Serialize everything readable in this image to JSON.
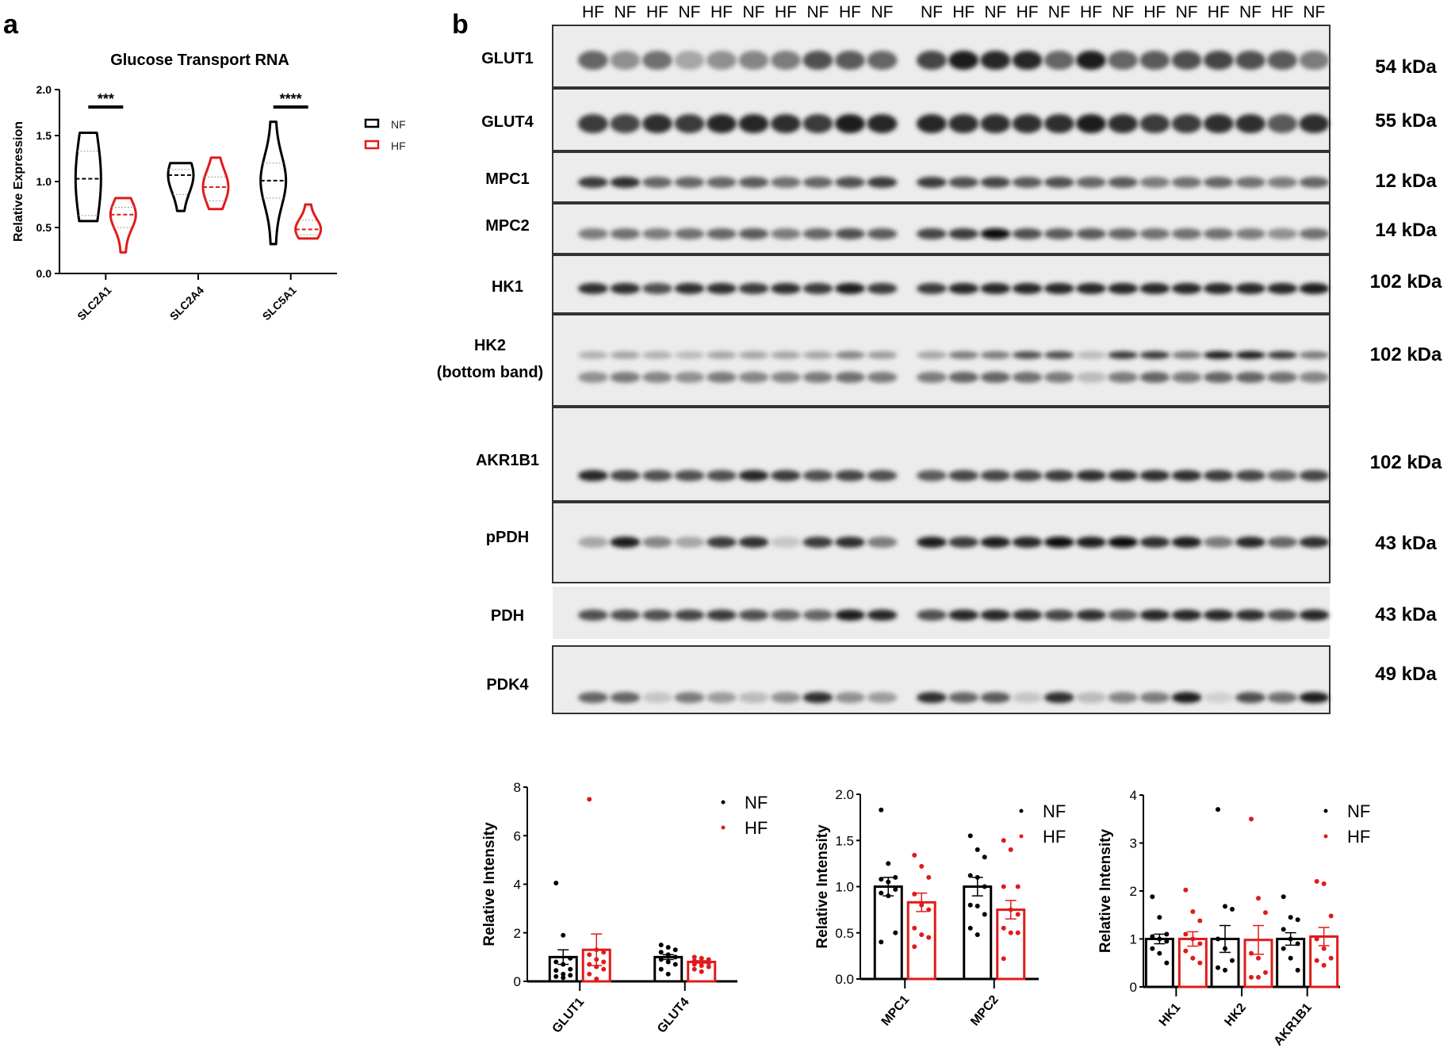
{
  "panel_labels": {
    "a": "a",
    "b": "b"
  },
  "colors": {
    "NF": "#000000",
    "HF": "#e01b1b",
    "blot_bg": "#ececec"
  },
  "chart_data": [
    {
      "type": "violin",
      "title": "Glucose Transport RNA",
      "ylabel": "Relative Expression",
      "ylim": [
        0,
        2.0
      ],
      "yticks": [
        "0.0",
        "0.5",
        "1.0",
        "1.5",
        "2.0"
      ],
      "categories": [
        "SLC2A1",
        "SLC2A4",
        "SLC5A1"
      ],
      "legend": [
        "NF",
        "HF"
      ],
      "legend_placement": "right",
      "significance": [
        {
          "category": "SLC2A1",
          "label": "***"
        },
        {
          "category": "SLC5A1",
          "label": "****"
        }
      ],
      "series": [
        {
          "name": "NF",
          "stats": [
            {
              "min": 0.57,
              "q1": 0.63,
              "median": 1.03,
              "q3": 1.33,
              "max": 1.53
            },
            {
              "min": 0.68,
              "q1": 0.86,
              "median": 1.07,
              "q3": 1.13,
              "max": 1.2
            },
            {
              "min": 0.32,
              "q1": 0.82,
              "median": 1.01,
              "q3": 1.2,
              "max": 1.65
            }
          ]
        },
        {
          "name": "HF",
          "stats": [
            {
              "min": 0.23,
              "q1": 0.5,
              "median": 0.64,
              "q3": 0.72,
              "max": 0.82
            },
            {
              "min": 0.7,
              "q1": 0.79,
              "median": 0.94,
              "q3": 1.05,
              "max": 1.26
            },
            {
              "min": 0.38,
              "q1": 0.42,
              "median": 0.48,
              "q3": 0.58,
              "max": 0.75
            }
          ]
        }
      ]
    },
    {
      "type": "bar",
      "ylabel": "Relative Intensity",
      "ylim": [
        0,
        8
      ],
      "yticks": [
        "0",
        "2",
        "4",
        "6",
        "8"
      ],
      "categories": [
        "GLUT1",
        "GLUT4"
      ],
      "legend": [
        "NF",
        "HF"
      ],
      "legend_placement": "top-right",
      "series": [
        {
          "name": "NF",
          "values": [
            1.0,
            1.0
          ],
          "sem": [
            0.3,
            0.1
          ],
          "points": [
            [
              4.05,
              1.9,
              0.95,
              0.8,
              0.7,
              0.5,
              0.45,
              0.3,
              0.25,
              0.2,
              0.15
            ],
            [
              1.5,
              1.4,
              1.3,
              1.2,
              1.1,
              1.0,
              0.9,
              0.8,
              0.7,
              0.5,
              0.3
            ]
          ]
        },
        {
          "name": "HF",
          "values": [
            1.3,
            0.8
          ],
          "sem": [
            0.65,
            0.05
          ],
          "points": [
            [
              7.5,
              1.3,
              1.2,
              1.1,
              0.9,
              0.8,
              0.7,
              0.6,
              0.5,
              0.3,
              0.1
            ],
            [
              1.0,
              0.95,
              0.9,
              0.85,
              0.8,
              0.75,
              0.7,
              0.65,
              0.6,
              0.5,
              0.4
            ]
          ]
        }
      ]
    },
    {
      "type": "bar",
      "ylabel": "Relative Intensity",
      "ylim": [
        0,
        2.0
      ],
      "yticks": [
        "0.0",
        "0.5",
        "1.0",
        "1.5",
        "2.0"
      ],
      "categories": [
        "MPC1",
        "MPC2"
      ],
      "legend": [
        "NF",
        "HF"
      ],
      "legend_placement": "top-right",
      "series": [
        {
          "name": "NF",
          "values": [
            1.0,
            1.0
          ],
          "sem": [
            0.1,
            0.1
          ],
          "points": [
            [
              1.83,
              1.25,
              1.1,
              1.08,
              1.05,
              0.97,
              0.93,
              0.9,
              0.5,
              0.4
            ],
            [
              1.55,
              1.4,
              1.32,
              1.12,
              1.1,
              1.0,
              0.8,
              0.79,
              0.7,
              0.55,
              0.48
            ]
          ]
        },
        {
          "name": "HF",
          "values": [
            0.83,
            0.75
          ],
          "sem": [
            0.1,
            0.1
          ],
          "points": [
            [
              1.34,
              1.22,
              1.1,
              0.92,
              0.8,
              0.75,
              0.55,
              0.48,
              0.45,
              0.35
            ],
            [
              1.5,
              1.4,
              1.0,
              1.0,
              0.75,
              0.7,
              0.55,
              0.5,
              0.5,
              0.22
            ]
          ]
        }
      ]
    },
    {
      "type": "bar",
      "ylabel": "Relative Intensity",
      "ylim": [
        0,
        4
      ],
      "yticks": [
        "0",
        "1",
        "2",
        "3",
        "4"
      ],
      "categories": [
        "HK1",
        "HK2",
        "AKR1B1"
      ],
      "legend": [
        "NF",
        "HF"
      ],
      "legend_placement": "top-right",
      "series": [
        {
          "name": "NF",
          "values": [
            1.0,
            1.0,
            1.0
          ],
          "sem": [
            0.1,
            0.28,
            0.13
          ],
          "points": [
            [
              1.88,
              1.45,
              1.1,
              1.05,
              1.0,
              0.95,
              0.8,
              0.7,
              0.5
            ],
            [
              3.7,
              1.68,
              1.62,
              1.0,
              0.8,
              0.55,
              0.4,
              0.35
            ],
            [
              1.88,
              1.45,
              1.4,
              1.2,
              1.0,
              0.9,
              0.8,
              0.6,
              0.35
            ]
          ]
        },
        {
          "name": "HF",
          "values": [
            1.0,
            0.98,
            1.05
          ],
          "sem": [
            0.15,
            0.3,
            0.19
          ],
          "points": [
            [
              2.02,
              1.57,
              1.38,
              1.1,
              1.0,
              0.9,
              0.75,
              0.6,
              0.5
            ],
            [
              3.5,
              1.85,
              1.55,
              0.7,
              0.6,
              0.3,
              0.2,
              0.2
            ],
            [
              2.2,
              2.15,
              1.48,
              1.0,
              0.8,
              0.6,
              0.55,
              0.45
            ]
          ]
        }
      ]
    }
  ],
  "blot": {
    "lanes_left": [
      "HF",
      "NF",
      "HF",
      "NF",
      "HF",
      "NF",
      "HF",
      "NF",
      "HF",
      "NF"
    ],
    "lanes_right": [
      "NF",
      "HF",
      "NF",
      "HF",
      "NF",
      "HF",
      "NF",
      "HF",
      "NF",
      "HF",
      "NF",
      "HF",
      "NF"
    ],
    "rows": [
      {
        "label": "GLUT1",
        "kda": "54 kDa",
        "left": [
          0.6,
          0.4,
          0.55,
          0.3,
          0.4,
          0.45,
          0.5,
          0.7,
          0.65,
          0.6
        ],
        "right": [
          0.75,
          0.95,
          0.9,
          0.9,
          0.6,
          0.95,
          0.6,
          0.65,
          0.7,
          0.75,
          0.7,
          0.65,
          0.5
        ]
      },
      {
        "label": "GLUT4",
        "kda": "55 kDa",
        "left": [
          0.8,
          0.75,
          0.85,
          0.8,
          0.9,
          0.9,
          0.85,
          0.8,
          0.95,
          0.9
        ],
        "right": [
          0.9,
          0.85,
          0.85,
          0.85,
          0.85,
          0.95,
          0.85,
          0.8,
          0.8,
          0.85,
          0.85,
          0.65,
          0.85
        ]
      },
      {
        "label": "MPC1",
        "kda": "12 kDa",
        "left": [
          0.8,
          0.85,
          0.6,
          0.6,
          0.6,
          0.65,
          0.55,
          0.6,
          0.7,
          0.8
        ],
        "right": [
          0.8,
          0.7,
          0.75,
          0.65,
          0.7,
          0.6,
          0.65,
          0.5,
          0.55,
          0.6,
          0.55,
          0.5,
          0.6
        ]
      },
      {
        "label": "MPC2",
        "kda": "14 kDa",
        "left": [
          0.5,
          0.55,
          0.5,
          0.55,
          0.6,
          0.65,
          0.5,
          0.6,
          0.7,
          0.65
        ],
        "right": [
          0.75,
          0.8,
          1.0,
          0.7,
          0.65,
          0.65,
          0.6,
          0.55,
          0.55,
          0.55,
          0.5,
          0.4,
          0.55
        ]
      },
      {
        "label": "HK1",
        "kda": "102 kDa",
        "left": [
          0.85,
          0.85,
          0.7,
          0.85,
          0.85,
          0.8,
          0.85,
          0.8,
          0.95,
          0.8
        ],
        "right": [
          0.8,
          0.9,
          0.9,
          0.9,
          0.9,
          0.9,
          0.9,
          0.9,
          0.9,
          0.9,
          0.9,
          0.9,
          0.95
        ]
      },
      {
        "label": "HK2",
        "sublabel": "(bottom band)",
        "kda": "102 kDa",
        "left": [
          0.4,
          0.5,
          0.45,
          0.4,
          0.5,
          0.45,
          0.45,
          0.5,
          0.55,
          0.5
        ],
        "right": [
          0.5,
          0.6,
          0.6,
          0.55,
          0.5,
          0.2,
          0.5,
          0.6,
          0.5,
          0.6,
          0.6,
          0.55,
          0.45
        ],
        "upper_left": [
          0.25,
          0.3,
          0.25,
          0.2,
          0.3,
          0.3,
          0.3,
          0.3,
          0.45,
          0.35
        ],
        "upper_right": [
          0.3,
          0.5,
          0.5,
          0.7,
          0.7,
          0.2,
          0.8,
          0.8,
          0.5,
          0.95,
          0.95,
          0.8,
          0.5
        ]
      },
      {
        "label": "AKR1B1",
        "kda": "102 kDa",
        "left": [
          0.9,
          0.75,
          0.7,
          0.7,
          0.7,
          0.9,
          0.8,
          0.7,
          0.75,
          0.7
        ],
        "right": [
          0.65,
          0.75,
          0.75,
          0.75,
          0.8,
          0.85,
          0.85,
          0.85,
          0.85,
          0.8,
          0.75,
          0.6,
          0.75
        ]
      },
      {
        "label": "pPDH",
        "kda": "43 kDa",
        "left": [
          0.3,
          0.95,
          0.45,
          0.3,
          0.8,
          0.85,
          0.15,
          0.8,
          0.85,
          0.5
        ],
        "right": [
          0.95,
          0.8,
          0.95,
          0.9,
          1.0,
          0.95,
          1.0,
          0.85,
          0.95,
          0.5,
          0.9,
          0.6,
          0.85
        ]
      },
      {
        "label": "PDH",
        "kda": "43 kDa",
        "left": [
          0.7,
          0.7,
          0.7,
          0.75,
          0.8,
          0.7,
          0.6,
          0.6,
          0.95,
          0.9
        ],
        "right": [
          0.7,
          0.9,
          0.9,
          0.85,
          0.75,
          0.85,
          0.65,
          0.9,
          0.9,
          0.9,
          0.85,
          0.7,
          0.9
        ]
      },
      {
        "label": "PDK4",
        "kda": "49 kDa",
        "left": [
          0.6,
          0.6,
          0.15,
          0.5,
          0.35,
          0.2,
          0.4,
          0.85,
          0.4,
          0.35
        ],
        "right": [
          0.85,
          0.6,
          0.65,
          0.15,
          0.85,
          0.2,
          0.45,
          0.5,
          0.95,
          0.1,
          0.7,
          0.55,
          0.95
        ]
      }
    ]
  }
}
